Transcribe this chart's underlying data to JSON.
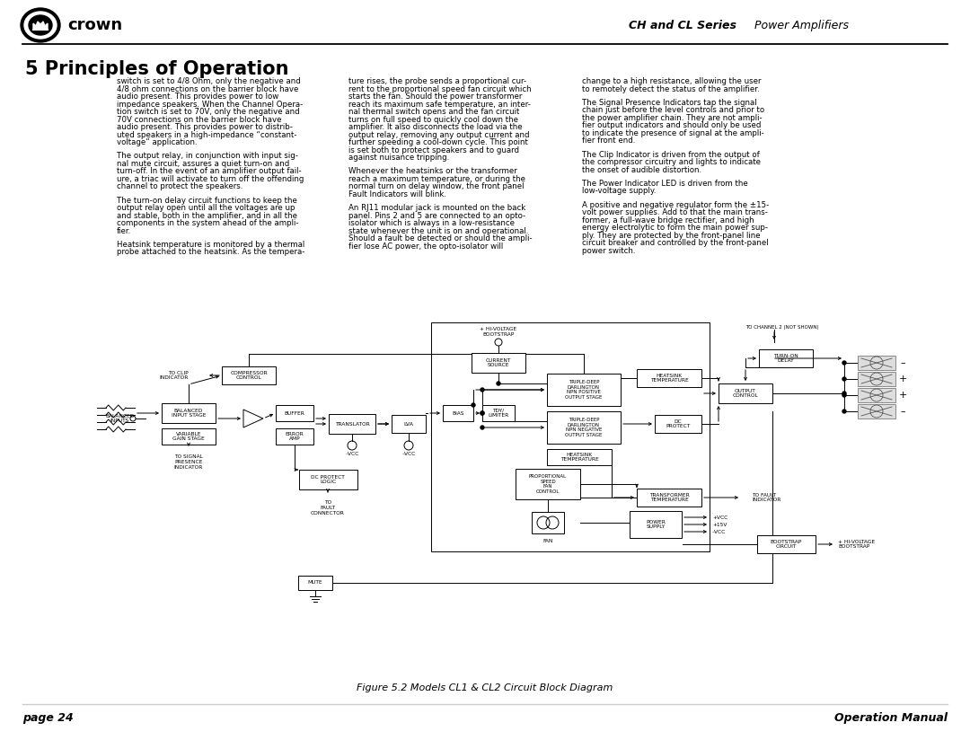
{
  "page_bg": "#ffffff",
  "header_right_bold": "CH and CL Series",
  "header_right_italic": " Power Amplifiers",
  "section_title": "5 Principles of Operation",
  "footer_left": "page 24",
  "footer_right": "Operation Manual",
  "figure_caption": "Figure 5.2 Models CL1 & CL2 Circuit Block Diagram",
  "col1_paragraphs": [
    "switch is set to 4/8 Ohm, only the negative and\n4/8 ohm connections on the barrier block have\naudio present. This provides power to low\nimpedance speakers. When the Channel Opera-\ntion switch is set to 70V, only the negative and\n70V connections on the barrier block have\naudio present. This provides power to distrib-\nuted speakers in a high-impedance “constant-\nvoltage” application.",
    "The output relay, in conjunction with input sig-\nnal mute circuit, assures a quiet turn-on and\nturn-off. In the event of an amplifier output fail-\nure, a triac will activate to turn off the offending\nchannel to protect the speakers.",
    "The turn-on delay circuit functions to keep the\noutput relay open until all the voltages are up\nand stable, both in the amplifier, and in all the\ncomponents in the system ahead of the ampli-\nfier.",
    "Heatsink temperature is monitored by a thermal\nprobe attached to the heatsink. As the tempera-"
  ],
  "col2_paragraphs": [
    "ture rises, the probe sends a proportional cur-\nrent to the proportional speed fan circuit which\nstarts the fan. Should the power transformer\nreach its maximum safe temperature, an inter-\nnal thermal switch opens and the fan circuit\nturns on full speed to quickly cool down the\namplifier. It also disconnects the load via the\noutput relay, removing any output current and\nfurther speeding a cool-down cycle. This point\nis set both to protect speakers and to guard\nagainst nuisance tripping.",
    "Whenever the heatsinks or the transformer\nreach a maximum temperature, or during the\nnormal turn on delay window, the front panel\nFault Indicators will blink.",
    "An RJ11 modular jack is mounted on the back\npanel. Pins 2 and 5 are connected to an opto-\nisolator which is always in a low-resistance\nstate whenever the unit is on and operational.\nShould a fault be detected or should the ampli-\nfier lose AC power, the opto-isolator will"
  ],
  "col3_paragraphs": [
    "change to a high resistance, allowing the user\nto remotely detect the status of the amplifier.",
    "The Signal Presence Indicators tap the signal\nchain just before the level controls and prior to\nthe power amplifier chain. They are not ampli-\nfier output indicators and should only be used\nto indicate the presence of signal at the ampli-\nfier front end.",
    "The Clip Indicator is driven from the output of\nthe compressor circuitry and lights to indicate\nthe onset of audible distortion.",
    "The Power Indicator LED is driven from the\nlow-voltage supply.",
    "A positive and negative regulator form the ±15-\nvolt power supplies. Add to that the main trans-\nformer, a full-wave bridge rectifier, and high\nenergy electrolytic to form the main power sup-\nply. They are protected by the front-panel line\ncircuit breaker and controlled by the front-panel\npower switch."
  ]
}
